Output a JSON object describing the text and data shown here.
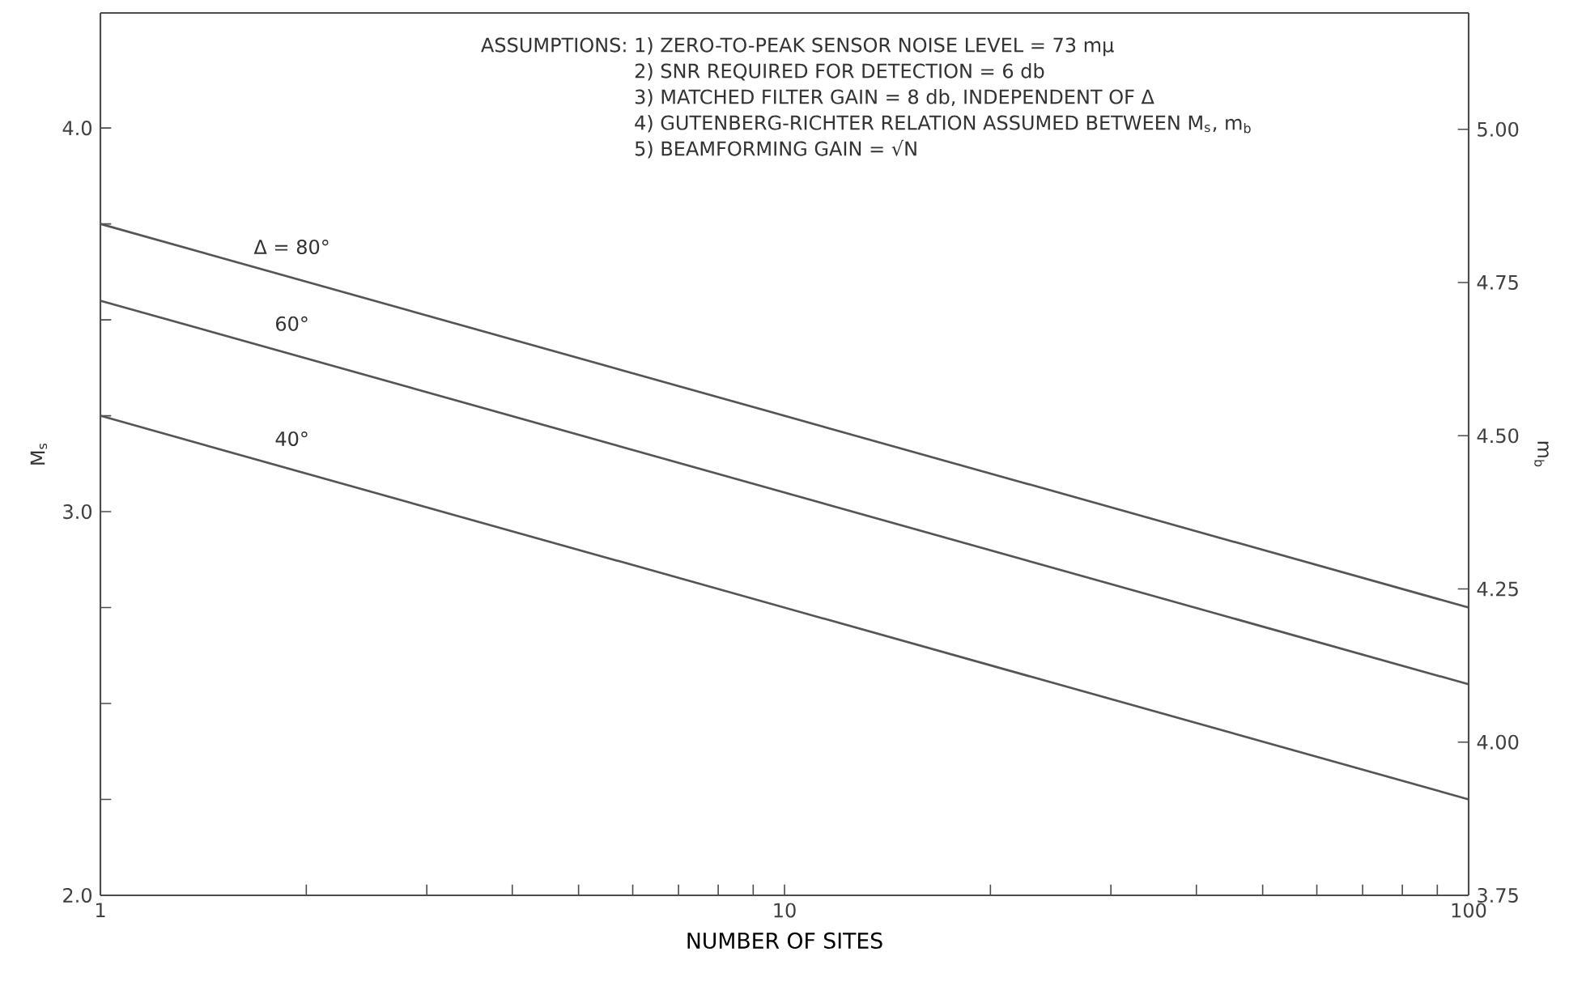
{
  "chart_data": {
    "type": "line",
    "xlabel": "NUMBER OF SITES",
    "ylabel": "M$_{s}$",
    "y2label": "m$_{b}$",
    "annotations": [
      "ASSUMPTIONS:",
      "1) ZERO-TO-PEAK SENSOR NOISE LEVEL = 73 mμ",
      "2) SNR REQUIRED FOR DETECTION = 6 db",
      "3) MATCHED FILTER GAIN = 8 db, INDEPENDENT OF Δ",
      "4) GUTENBERG-RICHTER RELATION ASSUMED BETWEEN M$_{s}$, m$_{b}$",
      "5) BEAMFORMING GAIN = √N"
    ],
    "log": "x",
    "grid": false,
    "legend": false,
    "line_style": "solid",
    "xlim": [
      1,
      100
    ],
    "xticks": [
      1,
      {
        "value": 2,
        "label": null
      },
      {
        "value": 3,
        "label": null
      },
      {
        "value": 4,
        "label": null
      },
      {
        "value": 5,
        "label": null
      },
      {
        "value": 6,
        "label": null
      },
      {
        "value": 7,
        "label": null
      },
      {
        "value": 8,
        "label": null
      },
      {
        "value": 9,
        "label": null
      },
      10,
      {
        "value": 20,
        "label": null
      },
      {
        "value": 30,
        "label": null
      },
      {
        "value": 40,
        "label": null
      },
      {
        "value": 50,
        "label": null
      },
      {
        "value": 60,
        "label": null
      },
      {
        "value": 70,
        "label": null
      },
      {
        "value": 80,
        "label": null
      },
      {
        "value": 90,
        "label": null
      },
      100
    ],
    "ylim": [
      2,
      4.3
    ],
    "yticks": [
      {
        "value": 2,
        "label": "2.0"
      },
      {
        "value": 2.25,
        "label": null
      },
      {
        "value": 2.5,
        "label": null
      },
      {
        "value": 2.75,
        "label": null
      },
      {
        "value": 3,
        "label": "3.0"
      },
      {
        "value": 3.25,
        "label": null
      },
      {
        "value": 3.5,
        "label": null
      },
      {
        "value": 3.75,
        "label": null
      },
      {
        "value": 4,
        "label": "4.0"
      }
    ],
    "y2lim": [
      3.75,
      5.19
    ],
    "y2ticks": [
      3.75,
      {
        "value": 4,
        "label": "4.00"
      },
      4.25,
      {
        "value": 4.5,
        "label": "4.50"
      },
      4.75,
      {
        "value": 5,
        "label": "5.00"
      }
    ],
    "series": [
      {
        "name": "Δ = 80°",
        "color": "#555555",
        "x": [
          1,
          10,
          100
        ],
        "values": [
          3.75,
          3.25,
          2.75
        ]
      },
      {
        "name": "60°",
        "color": "#555555",
        "x": [
          1,
          10,
          100
        ],
        "values": [
          3.55,
          3.05,
          2.55
        ]
      },
      {
        "name": "40°",
        "color": "#555555",
        "x": [
          1,
          10,
          100
        ],
        "values": [
          3.25,
          2.75,
          2.25
        ]
      }
    ]
  }
}
